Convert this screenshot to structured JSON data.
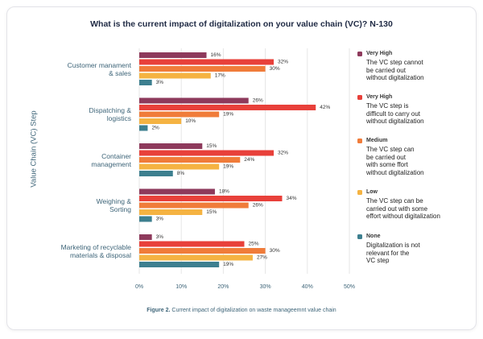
{
  "chart_data": {
    "type": "hbar",
    "title": "What is the current impact of digitalization on your value chain (VC)? N-130",
    "y_label": "Value Chain (VC) Step",
    "caption_label": "Figure 2.",
    "caption_text": "Current impact of digitalization on waste manageemnt value chain",
    "categories": [
      "Customer manament\n& sales",
      "Dispatching &\nlogistics",
      "Container\nmanagement",
      "Weighing &\nSorting",
      "Marketing of recyclable\nmaterials & disposal"
    ],
    "series": [
      {
        "name": "Very High",
        "description": "The VC step cannot\nbe carried out\nwithout digitalization",
        "color": "#8e3a5c",
        "values": [
          16,
          26,
          15,
          18,
          3
        ],
        "value_labels": [
          "16%",
          "26%",
          "15%",
          "18%",
          "3%"
        ]
      },
      {
        "name": "Very High",
        "description": "The VC step is\ndifficult to carry out\nwithout digitalization",
        "color": "#e8403a",
        "values": [
          32,
          42,
          32,
          34,
          25
        ],
        "value_labels": [
          "32%",
          "42%",
          "32%",
          "34%",
          "25%"
        ]
      },
      {
        "name": "Medium",
        "description": "The VC step can\nbe carried out\nwith some ffort\nwithout digitalization",
        "color": "#f07c3a",
        "values": [
          30,
          19,
          24,
          26,
          30
        ],
        "value_labels": [
          "30%",
          "19%",
          "24%",
          "26%",
          "30%"
        ]
      },
      {
        "name": "Low",
        "description": "The VC step can be\ncarried out with some\neffort without digitalization",
        "color": "#f5b342",
        "values": [
          17,
          10,
          19,
          15,
          27
        ],
        "value_labels": [
          "17%",
          "10%",
          "19%",
          "15%",
          "27%"
        ]
      },
      {
        "name": "None",
        "description": "Digitalization is not\nrelevant for the\nVC step",
        "color": "#3d7f8f",
        "values": [
          3,
          2,
          8,
          3,
          19
        ],
        "value_labels": [
          "3%",
          "2%",
          "8%",
          "3%",
          "19%"
        ]
      }
    ],
    "xlim": [
      0,
      50
    ],
    "xticks": [
      {
        "value": 0,
        "label": "0%"
      },
      {
        "value": 10,
        "label": "10%"
      },
      {
        "value": 20,
        "label": "20%"
      },
      {
        "value": 30,
        "label": "30%"
      },
      {
        "value": 40,
        "label": "40%"
      },
      {
        "value": 50,
        "label": "50%"
      }
    ],
    "grid": true
  }
}
